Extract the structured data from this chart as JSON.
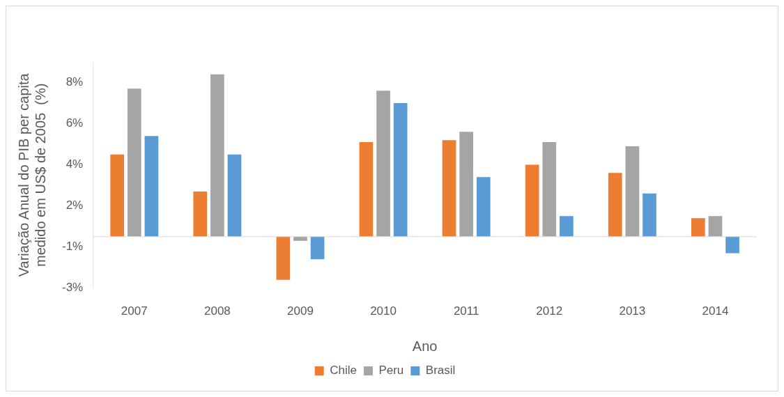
{
  "chart_data": {
    "type": "bar",
    "xlabel": "Ano",
    "ylabel": "Variação Anual do PIB per capita\nmedido em US$ de 2005  (%)",
    "categories": [
      "2007",
      "2008",
      "2009",
      "2010",
      "2011",
      "2012",
      "2013",
      "2014"
    ],
    "series": [
      {
        "name": "Chile",
        "color": "#ed7d31",
        "values": [
          4.0,
          2.2,
          -2.1,
          4.6,
          4.7,
          3.5,
          3.1,
          0.9
        ]
      },
      {
        "name": "Peru",
        "color": "#a5a5a5",
        "values": [
          7.2,
          7.9,
          -0.2,
          7.1,
          5.1,
          4.6,
          4.4,
          1.0
        ]
      },
      {
        "name": "Brasil",
        "color": "#5b9bd5",
        "values": [
          4.9,
          4.0,
          -1.1,
          6.5,
          2.9,
          1.0,
          2.1,
          -0.8
        ]
      }
    ],
    "ylim": [
      -2.5,
      8.5
    ],
    "yticks": [
      {
        "value": 7.5,
        "label": "8%"
      },
      {
        "value": 5.5,
        "label": "6%"
      },
      {
        "value": 3.5,
        "label": "4%"
      },
      {
        "value": 1.5,
        "label": "2%"
      },
      {
        "value": -0.5,
        "label": "-1%"
      },
      {
        "value": -2.5,
        "label": "-3%"
      }
    ],
    "grid": false,
    "legend": "bottom"
  }
}
